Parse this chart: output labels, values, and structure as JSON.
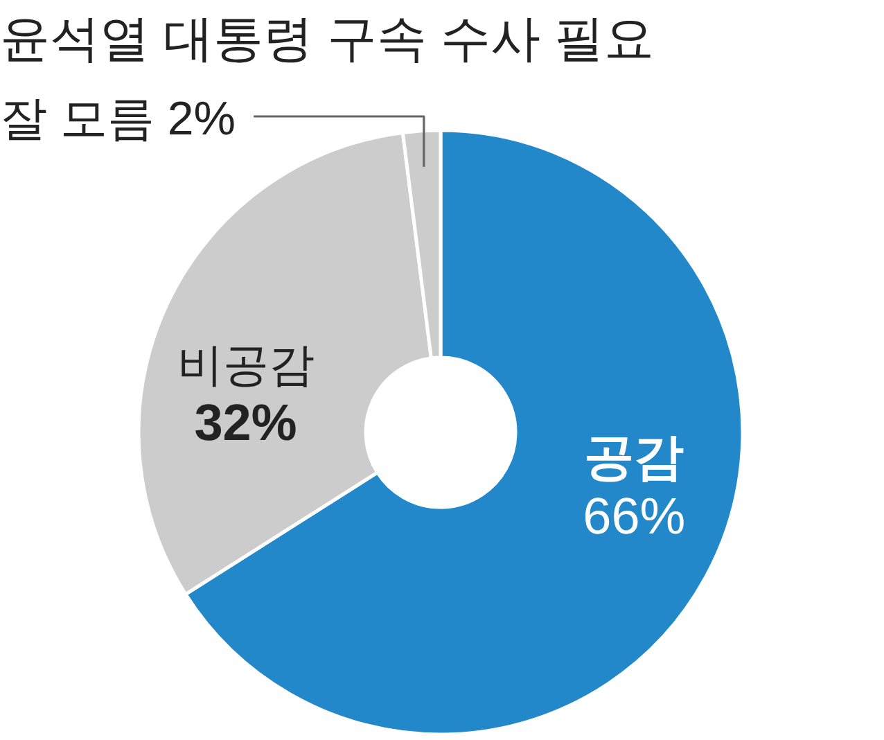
{
  "chart_data": {
    "type": "donut",
    "title": "윤석열 대통령 구속 수사 필요",
    "categories": [
      "공감",
      "비공감",
      "잘 모름"
    ],
    "values": [
      66,
      32,
      2
    ],
    "colors": [
      "#2288c9",
      "#cccccc",
      "#cccccc"
    ],
    "value_labels": [
      "66%",
      "32%",
      "2%"
    ]
  }
}
